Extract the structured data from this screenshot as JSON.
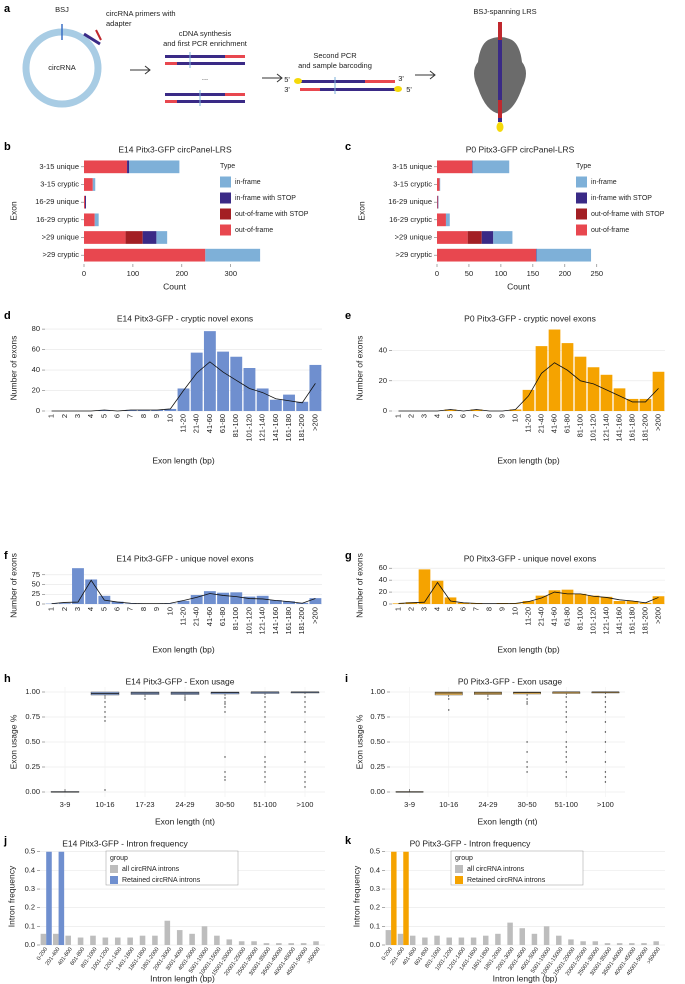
{
  "diagram": {
    "panel": "a",
    "bsj": "BSJ",
    "primers": [
      "circRNA primers with",
      "adapter"
    ],
    "circrna": "circRNA",
    "step1": [
      "cDNA synthesis",
      "and first PCR enrichment"
    ],
    "ellipsis": "...",
    "step2": [
      "Second PCR",
      "and sample barcoding"
    ],
    "end_5_top": "5'",
    "end_3_top": "3'",
    "end_3_bottom": "3'",
    "end_5_bottom": "5'",
    "lrs": "BSJ-spanning LRS"
  },
  "chart_data": [
    {
      "panel": "b",
      "type": "bar",
      "horizontal": true,
      "stacked": true,
      "title": "E14 Pitx3-GFP circPanel-LRS",
      "xlabel": "Count",
      "ylabel": "Exon",
      "categories": [
        "3-15 unique",
        "3-15 cryptic",
        "16-29 unique",
        "16-29 cryptic",
        ">29 unique",
        ">29 cryptic"
      ],
      "series": [
        {
          "name": "in-frame",
          "color": "#7eb0d8",
          "values": [
            103,
            5,
            0,
            8,
            22,
            112
          ]
        },
        {
          "name": "in-frame with STOP",
          "color": "#3a2a86",
          "values": [
            4,
            0,
            2,
            0,
            28,
            0
          ]
        },
        {
          "name": "out-of-frame with STOP",
          "color": "#a31f24",
          "values": [
            0,
            0,
            0,
            0,
            35,
            0
          ]
        },
        {
          "name": "out-of-frame",
          "color": "#e8474f",
          "values": [
            88,
            18,
            2,
            22,
            85,
            248
          ]
        }
      ],
      "xlim": [
        0,
        370
      ],
      "xticks": [
        0,
        100,
        200,
        300
      ],
      "grid": false,
      "legend": {
        "title": "Type",
        "position": "right"
      }
    },
    {
      "panel": "c",
      "type": "bar",
      "horizontal": true,
      "stacked": true,
      "title": "P0 Pitx3-GFP circPanel-LRS",
      "xlabel": "Count",
      "ylabel": "Exon",
      "categories": [
        "3-15 unique",
        "3-15 cryptic",
        "16-29 unique",
        "16-29 cryptic",
        ">29 unique",
        ">29 cryptic"
      ],
      "series": [
        {
          "name": "in-frame",
          "color": "#7eb0d8",
          "values": [
            57,
            1,
            0,
            6,
            30,
            85
          ]
        },
        {
          "name": "in-frame with STOP",
          "color": "#3a2a86",
          "values": [
            1,
            0,
            1,
            0,
            18,
            1
          ]
        },
        {
          "name": "out-of-frame with STOP",
          "color": "#a31f24",
          "values": [
            0,
            0,
            0,
            0,
            22,
            0
          ]
        },
        {
          "name": "out-of-frame",
          "color": "#e8474f",
          "values": [
            55,
            4,
            1,
            14,
            48,
            155
          ]
        }
      ],
      "xlim": [
        0,
        255
      ],
      "xticks": [
        0,
        50,
        100,
        150,
        200,
        250
      ],
      "grid": false,
      "legend": {
        "title": "Type",
        "position": "right"
      }
    },
    {
      "panel": "d",
      "type": "bar",
      "title": "E14 Pitx3-GFP - cryptic novel exons",
      "xlabel": "Exon length (bp)",
      "ylabel": "Number of exons",
      "categories": [
        "1",
        "2",
        "3",
        "4",
        "5",
        "6",
        "7",
        "8",
        "9",
        "10",
        "11-20",
        "21-40",
        "41-60",
        "61-80",
        "81-100",
        "101-120",
        "121-140",
        "141-160",
        "161-180",
        "181-200",
        ">200"
      ],
      "series": [
        {
          "type": "bar",
          "color": "#6f8fcf",
          "values": [
            0,
            0,
            0,
            0,
            1,
            0,
            1,
            1,
            1,
            2,
            22,
            57,
            78,
            58,
            53,
            42,
            22,
            11,
            16,
            9,
            45
          ]
        },
        {
          "type": "line",
          "color": "#111111",
          "values": [
            0,
            0,
            0,
            0,
            1,
            0,
            1,
            1,
            1,
            2,
            20,
            37,
            48,
            38,
            30,
            22,
            18,
            12,
            10,
            8,
            27
          ]
        }
      ],
      "ylim": [
        0,
        84
      ],
      "yticks": [
        0,
        20,
        40,
        60,
        80
      ],
      "grid": true
    },
    {
      "panel": "e",
      "type": "bar",
      "title": "P0 Pitx3-GFP - cryptic novel exons",
      "xlabel": "Exon length (bp)",
      "ylabel": "Number of exons",
      "categories": [
        "1",
        "2",
        "3",
        "4",
        "5",
        "6",
        "7",
        "8",
        "9",
        "10",
        "11-20",
        "21-40",
        "41-60",
        "61-80",
        "81-100",
        "101-120",
        "121-140",
        "141-160",
        "161-180",
        "181-200",
        ">200"
      ],
      "series": [
        {
          "type": "bar",
          "color": "#f5a300",
          "values": [
            0,
            0,
            0,
            0,
            1,
            0,
            1,
            0,
            0,
            1,
            14,
            43,
            54,
            45,
            36,
            29,
            24,
            15,
            8,
            8,
            26
          ]
        },
        {
          "type": "line",
          "color": "#111111",
          "values": [
            0,
            0,
            0,
            0,
            1,
            0,
            1,
            0,
            0,
            1,
            10,
            25,
            32,
            27,
            20,
            18,
            14,
            10,
            6,
            6,
            15
          ]
        }
      ],
      "ylim": [
        0,
        57
      ],
      "yticks": [
        0,
        20,
        40
      ],
      "grid": true
    },
    {
      "panel": "f",
      "type": "bar",
      "title": "E14 Pitx3-GFP - unique novel exons",
      "xlabel": "Exon length (bp)",
      "ylabel": "Number of exons",
      "categories": [
        "1",
        "2",
        "3",
        "4",
        "5",
        "6",
        "7",
        "8",
        "9",
        "10",
        "11-20",
        "21-40",
        "41-60",
        "61-80",
        "81-100",
        "101-120",
        "121-140",
        "141-160",
        "161-180",
        "181-200",
        ">200"
      ],
      "series": [
        {
          "type": "bar",
          "color": "#6f8fcf",
          "values": [
            1,
            2,
            92,
            63,
            21,
            6,
            1,
            1,
            1,
            1,
            8,
            23,
            33,
            29,
            30,
            19,
            21,
            10,
            7,
            3,
            15
          ]
        },
        {
          "type": "line",
          "color": "#111111",
          "values": [
            1,
            4,
            5,
            61,
            10,
            5,
            2,
            1,
            1,
            2,
            9,
            17,
            27,
            22,
            19,
            14,
            13,
            9,
            6,
            2,
            14
          ]
        }
      ],
      "ylim": [
        0,
        95
      ],
      "yticks": [
        0,
        25,
        50,
        75
      ],
      "grid": true
    },
    {
      "panel": "g",
      "type": "bar",
      "title": "P0 Pitx3-GFP - unique novel exons",
      "xlabel": "Exon length (bp)",
      "ylabel": "Number of exons",
      "categories": [
        "1",
        "2",
        "3",
        "4",
        "5",
        "6",
        "7",
        "8",
        "9",
        "10",
        "11-20",
        "21-40",
        "41-60",
        "61-80",
        "81-100",
        "101-120",
        "121-140",
        "141-160",
        "161-180",
        "181-200",
        ">200"
      ],
      "series": [
        {
          "type": "bar",
          "color": "#f5a300",
          "values": [
            1,
            3,
            58,
            39,
            11,
            2,
            1,
            0,
            1,
            1,
            5,
            14,
            23,
            24,
            17,
            14,
            12,
            5,
            5,
            2,
            13
          ]
        },
        {
          "type": "line",
          "color": "#111111",
          "values": [
            1,
            2,
            3,
            36,
            5,
            2,
            1,
            1,
            1,
            1,
            4,
            10,
            20,
            17,
            17,
            13,
            11,
            7,
            5,
            2,
            11
          ]
        }
      ],
      "ylim": [
        0,
        62
      ],
      "yticks": [
        0,
        20,
        40,
        60
      ],
      "grid": true
    },
    {
      "panel": "h",
      "type": "box",
      "title": "E14 Pitx3-GFP - Exon usage",
      "xlabel": "Exon length (nt)",
      "ylabel": "Exon usage %",
      "color": "#8fa8d8",
      "categories": [
        "3-9",
        "10-16",
        "17-23",
        "24-29",
        "30-50",
        "51-100",
        ">100"
      ],
      "q1": [
        0,
        0.97,
        0.975,
        0.975,
        0.98,
        0.985,
        0.99
      ],
      "median": [
        0,
        0.985,
        0.99,
        0.99,
        0.995,
        1,
        1
      ],
      "q3": [
        0.005,
        1,
        1,
        1,
        1,
        1,
        1
      ],
      "whisker_low": [
        0,
        0.93,
        0.95,
        0.95,
        0.96,
        0.97,
        0.98
      ],
      "whisker_high": [
        0.03,
        1,
        1,
        1,
        1,
        1,
        1
      ],
      "outliers": [
        [],
        [
          0.9,
          0.85,
          0.8,
          0.75,
          0.71,
          0.02
        ],
        [
          0.93
        ],
        [
          0.94,
          0.92
        ],
        [
          0.94,
          0.9,
          0.88,
          0.85,
          0.8,
          0.35,
          0.2,
          0.15,
          0.12
        ],
        [
          0.95,
          0.9,
          0.85,
          0.8,
          0.75,
          0.7,
          0.6,
          0.5,
          0.35,
          0.3,
          0.25,
          0.2,
          0.15,
          0.1
        ],
        [
          0.95,
          0.9,
          0.85,
          0.8,
          0.7,
          0.6,
          0.5,
          0.4,
          0.3,
          0.2,
          0.15,
          0.1,
          0.05
        ]
      ],
      "ylim": [
        -0.05,
        1.05
      ],
      "yticks": [
        {
          "value": 0,
          "label": "0.00"
        },
        0.25,
        {
          "value": 0.5,
          "label": "0.50"
        },
        0.75,
        {
          "value": 1,
          "label": "1.00"
        }
      ],
      "grid": true
    },
    {
      "panel": "i",
      "type": "box",
      "title": "P0 Pitx3-GFP - Exon usage",
      "xlabel": "Exon length (nt)",
      "ylabel": "Exon usage %",
      "color": "#f5c060",
      "categories": [
        "3-9",
        "10-16",
        "24-29",
        "30-50",
        "51-100",
        ">100"
      ],
      "q1": [
        0,
        0.97,
        0.975,
        0.98,
        0.985,
        0.99
      ],
      "median": [
        0,
        0.99,
        0.99,
        0.995,
        1,
        1
      ],
      "q3": [
        0.005,
        1,
        1,
        1,
        1,
        1
      ],
      "whisker_low": [
        0,
        0.95,
        0.95,
        0.96,
        0.97,
        0.98
      ],
      "whisker_high": [
        0.03,
        1,
        1,
        1,
        1,
        1
      ],
      "outliers": [
        [],
        [
          0.93,
          0.82
        ],
        [
          0.93
        ],
        [
          0.93,
          0.9,
          0.88,
          0.5,
          0.4,
          0.3,
          0.25,
          0.2
        ],
        [
          0.95,
          0.9,
          0.85,
          0.8,
          0.75,
          0.7,
          0.6,
          0.5,
          0.45,
          0.4,
          0.35,
          0.3,
          0.2,
          0.15
        ],
        [
          0.95,
          0.9,
          0.85,
          0.8,
          0.7,
          0.6,
          0.5,
          0.4,
          0.3,
          0.2,
          0.15,
          0.1
        ]
      ],
      "ylim": [
        -0.05,
        1.05
      ],
      "yticks": [
        {
          "value": 0,
          "label": "0.00"
        },
        0.25,
        {
          "value": 0.5,
          "label": "0.50"
        },
        0.75,
        {
          "value": 1,
          "label": "1.00"
        }
      ],
      "grid": true
    },
    {
      "panel": "j",
      "type": "bar",
      "grouped": true,
      "title": "E14 Pitx3-GFP - Intron frequency",
      "xlabel": "Intron length (bp)",
      "ylabel": "Intron frequency",
      "categories": [
        "0-200",
        "201-400",
        "401-600",
        "601-800",
        "801-1000",
        "1001-1200",
        "1201-1400",
        "1401-1600",
        "1601-1800",
        "1801-2000",
        "2001-3000",
        "3001-4000",
        "4001-5000",
        "5001-10000",
        "10001-15000",
        "15001-20000",
        "20001-25000",
        "25001-30000",
        "30001-35000",
        "35001-40000",
        "40001-45000",
        "45001-50000",
        ">50000"
      ],
      "series": [
        {
          "name": "all circRNA introns",
          "color": "#bdbdbd",
          "values": [
            0.06,
            0.06,
            0.05,
            0.04,
            0.05,
            0.04,
            0.04,
            0.04,
            0.05,
            0.05,
            0.13,
            0.08,
            0.06,
            0.1,
            0.05,
            0.03,
            0.02,
            0.02,
            0.01,
            0.01,
            0.01,
            0.01,
            0.02
          ]
        },
        {
          "name": "Retained circRNA introns",
          "color": "#6f8fcf",
          "values": [
            0.5,
            0.5,
            0,
            0,
            0,
            0,
            0,
            0,
            0,
            0,
            0,
            0,
            0,
            0,
            0,
            0,
            0,
            0,
            0,
            0,
            0,
            0,
            0
          ]
        }
      ],
      "ylim": [
        0,
        0.52
      ],
      "yticks": [
        {
          "value": 0,
          "label": "0.0"
        },
        0.1,
        0.2,
        0.3,
        0.4,
        0.5
      ],
      "grid": true,
      "legend": {
        "title": "group",
        "position": "upper-left"
      }
    },
    {
      "panel": "k",
      "type": "bar",
      "grouped": true,
      "title": "P0 Pitx3-GFP - Intron frequency",
      "xlabel": "Intron length (bp)",
      "ylabel": "Intron frequency",
      "categories": [
        "0-200",
        "201-400",
        "401-600",
        "601-800",
        "801-1000",
        "1001-1200",
        "1201-1400",
        "1401-1600",
        "1601-1800",
        "1801-2000",
        "2001-3000",
        "3001-4000",
        "4001-5000",
        "5001-10000",
        "10001-15000",
        "15001-20000",
        "20001-25000",
        "25001-30000",
        "30001-35000",
        "35001-40000",
        "40001-45000",
        "45001-50000",
        ">50000"
      ],
      "series": [
        {
          "name": "all circRNA introns",
          "color": "#bdbdbd",
          "values": [
            0.08,
            0.06,
            0.05,
            0.04,
            0.05,
            0.04,
            0.04,
            0.04,
            0.05,
            0.06,
            0.12,
            0.09,
            0.06,
            0.1,
            0.05,
            0.03,
            0.02,
            0.02,
            0.01,
            0.01,
            0.01,
            0.01,
            0.02
          ]
        },
        {
          "name": "Retained circRNA introns",
          "color": "#f5a300",
          "values": [
            0.5,
            0.5,
            0,
            0,
            0,
            0,
            0,
            0,
            0,
            0,
            0,
            0,
            0,
            0,
            0,
            0,
            0,
            0,
            0,
            0,
            0,
            0,
            0
          ]
        }
      ],
      "ylim": [
        0,
        0.52
      ],
      "yticks": [
        {
          "value": 0,
          "label": "0.0"
        },
        0.1,
        0.2,
        0.3,
        0.4,
        0.5
      ],
      "grid": true,
      "legend": {
        "title": "group",
        "position": "upper-left"
      }
    }
  ]
}
